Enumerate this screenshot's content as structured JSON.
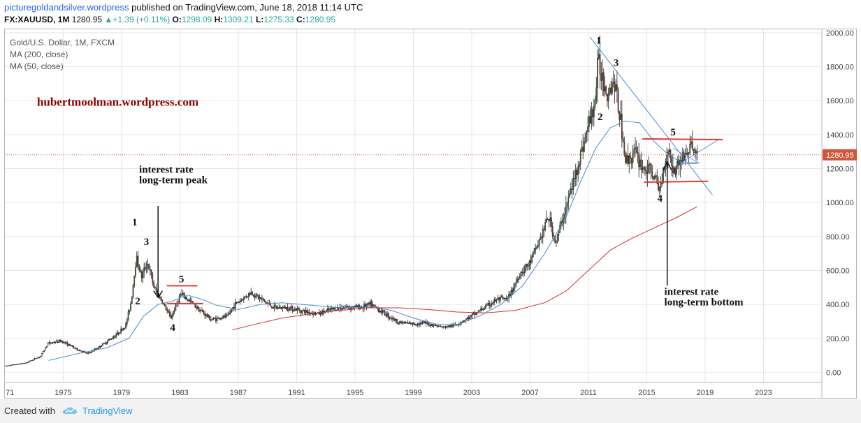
{
  "header": {
    "site": "picturegoldandsilver.wordpress",
    "published": "published on TradingView.com, June 18, 2018 11:14 UTC",
    "symbol": "FX:XAUUSD, 1M",
    "last": "1280.95",
    "change_arrow": "▲",
    "change": "+1.39 (+0.11%)",
    "o_label": "O:",
    "o_value": "1298.09",
    "h_label": "H:",
    "h_value": "1309.21",
    "l_label": "L:",
    "l_value": "1275.33",
    "c_label": "C:",
    "c_value": "1280.95"
  },
  "legend": {
    "title": "Gold/U.S. Dollar, 1M, FXCM",
    "ma200": "MA (200, close)",
    "ma50": "MA (50, close)"
  },
  "footer": {
    "created": "Created with",
    "brand": "TradingView",
    "icon": "tradingview-cloud-icon"
  },
  "colors": {
    "up_candle": "#3a7d44",
    "down_candle": "#a23b2a",
    "ma50": "#4a8cc9",
    "ma200": "#d23030",
    "annotation_red": "#e53935",
    "price_label": "#d6553a",
    "watermark": "#8b0000"
  },
  "chart_data": {
    "type": "candlestick",
    "symbol": "XAUUSD",
    "interval": "1M",
    "current_price": 1280.95,
    "xlim": [
      1971,
      2027
    ],
    "ylim": [
      -60,
      2020
    ],
    "x_ticks": [
      "71",
      "1975",
      "1979",
      "1983",
      "1987",
      "1991",
      "1995",
      "1999",
      "2003",
      "2007",
      "2011",
      "2015",
      "2019",
      "2023"
    ],
    "y_ticks": [
      "0.00",
      "200.00",
      "400.00",
      "600.00",
      "800.00",
      "1000.00",
      "1200.00",
      "1400.00",
      "1600.00",
      "1800.00",
      "2000.00"
    ],
    "price_path": [
      [
        1971,
        35
      ],
      [
        1972.5,
        55
      ],
      [
        1973.5,
        95
      ],
      [
        1974,
        170
      ],
      [
        1974.9,
        185
      ],
      [
        1976,
        135
      ],
      [
        1976.7,
        110
      ],
      [
        1977.5,
        150
      ],
      [
        1978.5,
        210
      ],
      [
        1979.3,
        270
      ],
      [
        1979.7,
        420
      ],
      [
        1980.05,
        680
      ],
      [
        1980.4,
        560
      ],
      [
        1980.8,
        650
      ],
      [
        1981.3,
        490
      ],
      [
        1981.8,
        420
      ],
      [
        1982.4,
        320
      ],
      [
        1983.1,
        460
      ],
      [
        1983.7,
        420
      ],
      [
        1984.5,
        360
      ],
      [
        1985.2,
        310
      ],
      [
        1986.3,
        330
      ],
      [
        1986.8,
        400
      ],
      [
        1987.9,
        470
      ],
      [
        1988.8,
        420
      ],
      [
        1989.5,
        380
      ],
      [
        1990.5,
        380
      ],
      [
        1991.5,
        360
      ],
      [
        1992.5,
        345
      ],
      [
        1993.6,
        375
      ],
      [
        1994.5,
        385
      ],
      [
        1995.5,
        385
      ],
      [
        1996.1,
        400
      ],
      [
        1997.1,
        345
      ],
      [
        1998,
        295
      ],
      [
        1999,
        285
      ],
      [
        1999.8,
        290
      ],
      [
        2001.1,
        265
      ],
      [
        2001.8,
        275
      ],
      [
        2002.8,
        320
      ],
      [
        2003.8,
        375
      ],
      [
        2004.8,
        430
      ],
      [
        2005.5,
        430
      ],
      [
        2006.4,
        590
      ],
      [
        2007,
        640
      ],
      [
        2007.8,
        800
      ],
      [
        2008.3,
        920
      ],
      [
        2008.8,
        760
      ],
      [
        2009.4,
        940
      ],
      [
        2010,
        1120
      ],
      [
        2010.8,
        1380
      ],
      [
        2011.5,
        1600
      ],
      [
        2011.7,
        1830
      ],
      [
        2012.3,
        1650
      ],
      [
        2012.8,
        1720
      ],
      [
        2013.3,
        1450
      ],
      [
        2013.6,
        1240
      ],
      [
        2014.2,
        1300
      ],
      [
        2014.8,
        1200
      ],
      [
        2015.4,
        1180
      ],
      [
        2015.9,
        1070
      ],
      [
        2016.5,
        1330
      ],
      [
        2016.9,
        1180
      ],
      [
        2017.3,
        1250
      ],
      [
        2017.8,
        1290
      ],
      [
        2018.1,
        1340
      ],
      [
        2018.45,
        1281
      ]
    ],
    "ma50": [
      [
        1974,
        70
      ],
      [
        1976,
        110
      ],
      [
        1978,
        145
      ],
      [
        1979.5,
        200
      ],
      [
        1980.5,
        330
      ],
      [
        1981.5,
        400
      ],
      [
        1982.5,
        420
      ],
      [
        1983.5,
        455
      ],
      [
        1984.5,
        430
      ],
      [
        1985.5,
        395
      ],
      [
        1987,
        370
      ],
      [
        1988.5,
        400
      ],
      [
        1990,
        410
      ],
      [
        1992,
        395
      ],
      [
        1994,
        380
      ],
      [
        1996,
        385
      ],
      [
        1997.5,
        365
      ],
      [
        1999,
        320
      ],
      [
        2000.5,
        285
      ],
      [
        2002,
        280
      ],
      [
        2003.5,
        330
      ],
      [
        2005,
        400
      ],
      [
        2006.5,
        510
      ],
      [
        2008,
        700
      ],
      [
        2009.5,
        920
      ],
      [
        2010.5,
        1130
      ],
      [
        2011.5,
        1320
      ],
      [
        2012.5,
        1440
      ],
      [
        2013.5,
        1480
      ],
      [
        2014.5,
        1470
      ],
      [
        2015.5,
        1360
      ],
      [
        2016.5,
        1280
      ],
      [
        2017.5,
        1230
      ],
      [
        2018.45,
        1230
      ]
    ],
    "ma200": [
      [
        1986.6,
        250
      ],
      [
        1988,
        280
      ],
      [
        1990,
        320
      ],
      [
        1992,
        345
      ],
      [
        1994,
        365
      ],
      [
        1996,
        380
      ],
      [
        1998,
        380
      ],
      [
        2000,
        370
      ],
      [
        2002,
        355
      ],
      [
        2004,
        350
      ],
      [
        2006,
        365
      ],
      [
        2008,
        410
      ],
      [
        2009.5,
        480
      ],
      [
        2011,
        600
      ],
      [
        2012.5,
        720
      ],
      [
        2014,
        790
      ],
      [
        2015.5,
        850
      ],
      [
        2017,
        910
      ],
      [
        2018.45,
        975
      ]
    ],
    "annotations": [
      {
        "text": "1",
        "x": 1979.9,
        "y": 865
      },
      {
        "text": "3",
        "x": 1980.7,
        "y": 750
      },
      {
        "text": "2",
        "x": 1980.1,
        "y": 400
      },
      {
        "text": "4",
        "x": 1982.5,
        "y": 245
      },
      {
        "text": "5",
        "x": 1983.1,
        "y": 530
      },
      {
        "text": "1",
        "x": 2011.7,
        "y": 1935
      },
      {
        "text": "3",
        "x": 2012.9,
        "y": 1805
      },
      {
        "text": "2",
        "x": 2011.8,
        "y": 1485
      },
      {
        "text": "5",
        "x": 2016.8,
        "y": 1395
      },
      {
        "text": "4",
        "x": 2015.9,
        "y": 1005
      }
    ],
    "text_notes": [
      {
        "lines": [
          "interest rate",
          "long-term peak"
        ],
        "x": 1980.2,
        "y": 1175
      },
      {
        "lines": [
          "interest rate",
          "long-term bottom"
        ],
        "x": 2016.2,
        "y": 455
      },
      {
        "lines": [
          "hubertmoolman.wordpress.com"
        ],
        "x": 1973.2,
        "y": 1570
      }
    ]
  }
}
